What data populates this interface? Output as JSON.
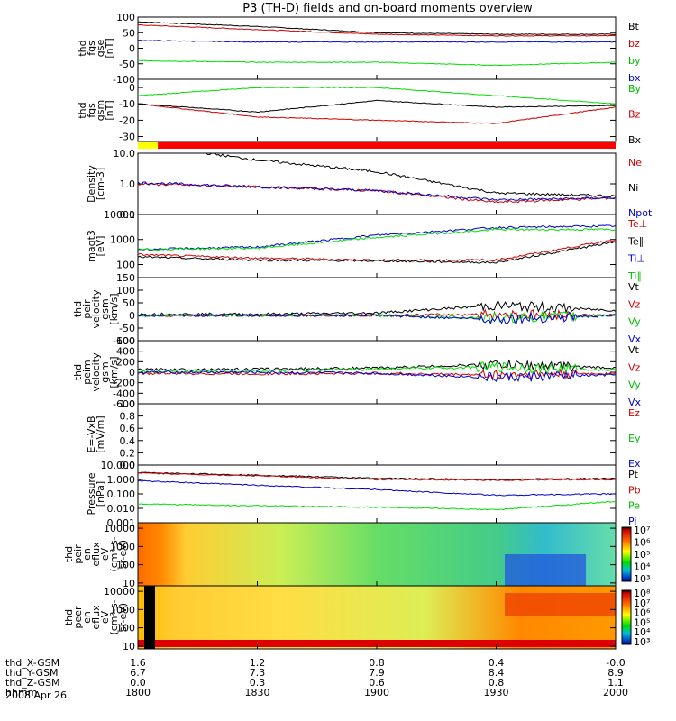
{
  "title": "P3 (TH-D) fields and on-board moments overview",
  "date": "2008 Apr 26",
  "colors": {
    "black": "#000000",
    "red": "#cc0000",
    "green": "#00dd00",
    "blue": "#0000cc"
  },
  "chart_data": [
    {
      "type": "line",
      "panel": "fgs_gse",
      "ylabel": [
        "thd",
        "fgs",
        "gse",
        "[nT]"
      ],
      "yticks": [
        "100",
        "50",
        "0",
        "-50",
        "-100"
      ],
      "ylim": [
        -100,
        100
      ],
      "scale": "linear",
      "legend": [
        {
          "label": "Bt",
          "color": "#000000"
        },
        {
          "label": "bz",
          "color": "#cc0000"
        },
        {
          "label": "by",
          "color": "#00bb00"
        },
        {
          "label": "bx",
          "color": "#0000cc"
        }
      ],
      "series": [
        {
          "name": "Bt",
          "color": "#000000",
          "x": [
            1800,
            1830,
            1900,
            1930,
            2000
          ],
          "values": [
            85,
            70,
            50,
            45,
            45
          ]
        },
        {
          "name": "bz",
          "color": "#cc0000",
          "x": [
            1800,
            1830,
            1900,
            1930,
            2000
          ],
          "values": [
            75,
            60,
            45,
            40,
            40
          ]
        },
        {
          "name": "by",
          "color": "#00dd00",
          "x": [
            1800,
            1830,
            1900,
            1930,
            2000
          ],
          "values": [
            -40,
            -45,
            -45,
            -55,
            -45
          ]
        },
        {
          "name": "bx",
          "color": "#0000cc",
          "x": [
            1800,
            1830,
            1900,
            1930,
            2000
          ],
          "values": [
            25,
            20,
            20,
            20,
            20
          ]
        }
      ]
    },
    {
      "type": "line",
      "panel": "fgs_gsm",
      "ylabel": [
        "thd",
        "fgs",
        "gsm",
        "[nT]"
      ],
      "yticks": [
        "0",
        "-10",
        "-20",
        "-30"
      ],
      "ylim": [
        -33,
        5
      ],
      "scale": "linear",
      "legend": [
        {
          "label": "By",
          "color": "#00bb00"
        },
        {
          "label": "Bz",
          "color": "#cc0000"
        },
        {
          "label": "Bx",
          "color": "#000000"
        }
      ],
      "series": [
        {
          "name": "By",
          "color": "#00dd00",
          "x": [
            1800,
            1830,
            1900,
            1930,
            2000
          ],
          "values": [
            -5,
            0,
            0,
            -5,
            -10
          ]
        },
        {
          "name": "Bz",
          "color": "#cc0000",
          "x": [
            1800,
            1830,
            1900,
            1930,
            2000
          ],
          "values": [
            -10,
            -18,
            -20,
            -22,
            -12
          ]
        },
        {
          "name": "Bx",
          "color": "#000000",
          "x": [
            1800,
            1830,
            1900,
            1930,
            2000
          ],
          "values": [
            -10,
            -15,
            -8,
            -12,
            -11
          ]
        }
      ]
    },
    {
      "type": "line",
      "panel": "density",
      "ylabel": [
        "Density",
        "[cm-3]"
      ],
      "yticks": [
        "10.0",
        "1.0",
        "0.1"
      ],
      "ylim": [
        0.1,
        10
      ],
      "scale": "log",
      "legend": [
        {
          "label": "Ne",
          "color": "#cc0000"
        },
        {
          "label": "Ni",
          "color": "#000000"
        },
        {
          "label": "Npot",
          "color": "#0000cc"
        }
      ],
      "series": [
        {
          "name": "Ne",
          "color": "#cc0000",
          "x": [
            1800,
            1830,
            1900,
            1930,
            2000
          ],
          "values": [
            1.0,
            0.8,
            0.6,
            0.25,
            0.35
          ]
        },
        {
          "name": "Ni",
          "color": "#000000",
          "x": [
            1800,
            1830,
            1900,
            1930,
            2000
          ],
          "values": [
            20,
            6,
            2.5,
            0.5,
            0.4
          ]
        },
        {
          "name": "Npot",
          "color": "#0000cc",
          "x": [
            1800,
            1830,
            1900,
            1930,
            2000
          ],
          "values": [
            1.1,
            0.8,
            0.6,
            0.3,
            0.35
          ]
        }
      ]
    },
    {
      "type": "line",
      "panel": "temperature",
      "ylabel": [
        "magt3",
        "[eV]"
      ],
      "yticks": [
        "10000",
        "1000",
        "100"
      ],
      "ylim": [
        30,
        10000
      ],
      "scale": "log",
      "legend": [
        {
          "label": "Te⊥",
          "color": "#cc0000"
        },
        {
          "label": "Te∥",
          "color": "#000000"
        },
        {
          "label": "Ti⊥",
          "color": "#0000cc"
        },
        {
          "label": "Ti∥",
          "color": "#00bb00"
        }
      ],
      "series": [
        {
          "name": "Te⊥",
          "color": "#cc0000",
          "x": [
            1800,
            1830,
            1900,
            1930,
            2000
          ],
          "values": [
            250,
            180,
            150,
            150,
            1000
          ]
        },
        {
          "name": "Te∥",
          "color": "#000000",
          "x": [
            1800,
            1830,
            1900,
            1930,
            2000
          ],
          "values": [
            200,
            150,
            140,
            120,
            800
          ]
        },
        {
          "name": "Ti⊥",
          "color": "#0000cc",
          "x": [
            1800,
            1830,
            1900,
            1930,
            2000
          ],
          "values": [
            400,
            500,
            1500,
            3000,
            3500
          ]
        },
        {
          "name": "Ti∥",
          "color": "#00dd00",
          "x": [
            1800,
            1830,
            1900,
            1930,
            2000
          ],
          "values": [
            400,
            450,
            1200,
            2500,
            2500
          ]
        }
      ]
    },
    {
      "type": "line",
      "panel": "peir_velocity",
      "ylabel": [
        "thd",
        "peir",
        "velocity",
        "gsm",
        "[km/s]"
      ],
      "yticks": [
        "150",
        "100",
        "50",
        "0",
        "-50",
        "-100"
      ],
      "ylim": [
        -100,
        150
      ],
      "scale": "linear",
      "legend": [
        {
          "label": "Vt",
          "color": "#000000"
        },
        {
          "label": "Vz",
          "color": "#cc0000"
        },
        {
          "label": "Vy",
          "color": "#00bb00"
        },
        {
          "label": "Vx",
          "color": "#0000cc"
        }
      ],
      "series": [
        {
          "name": "Vt",
          "color": "#000000",
          "x": [
            1800,
            1830,
            1900,
            1930,
            2000
          ],
          "values": [
            5,
            5,
            10,
            40,
            20
          ]
        },
        {
          "name": "Vz",
          "color": "#cc0000",
          "x": [
            1800,
            1830,
            1900,
            1930,
            2000
          ],
          "values": [
            0,
            0,
            0,
            5,
            0
          ]
        },
        {
          "name": "Vy",
          "color": "#00dd00",
          "x": [
            1800,
            1830,
            1900,
            1930,
            2000
          ],
          "values": [
            0,
            0,
            0,
            -10,
            0
          ]
        },
        {
          "name": "Vx",
          "color": "#0000cc",
          "x": [
            1800,
            1830,
            1900,
            1930,
            2000
          ],
          "values": [
            0,
            0,
            0,
            -15,
            0
          ]
        }
      ]
    },
    {
      "type": "line",
      "panel": "peim_velocity",
      "ylabel": [
        "thd",
        "peim",
        "velocity",
        "gsm",
        "[km/s]"
      ],
      "yticks": [
        "600",
        "400",
        "200",
        "0",
        "-200",
        "-400",
        "-600"
      ],
      "ylim": [
        -600,
        600
      ],
      "scale": "linear",
      "legend": [
        {
          "label": "Vt",
          "color": "#000000"
        },
        {
          "label": "Vz",
          "color": "#cc0000"
        },
        {
          "label": "Vy",
          "color": "#00bb00"
        },
        {
          "label": "Vx",
          "color": "#0000cc"
        }
      ],
      "series": [
        {
          "name": "Vt",
          "color": "#000000",
          "x": [
            1800,
            1830,
            1900,
            1930,
            2000
          ],
          "values": [
            50,
            60,
            80,
            150,
            80
          ]
        },
        {
          "name": "Vz",
          "color": "#cc0000",
          "x": [
            1800,
            1830,
            1900,
            1930,
            2000
          ],
          "values": [
            -20,
            -30,
            -20,
            -50,
            -20
          ]
        },
        {
          "name": "Vy",
          "color": "#00dd00",
          "x": [
            1800,
            1830,
            1900,
            1930,
            2000
          ],
          "values": [
            10,
            20,
            60,
            100,
            40
          ]
        },
        {
          "name": "Vx",
          "color": "#0000cc",
          "x": [
            1800,
            1830,
            1900,
            1930,
            2000
          ],
          "values": [
            0,
            0,
            -20,
            -100,
            -50
          ]
        }
      ]
    },
    {
      "type": "line",
      "panel": "e_vxb",
      "ylabel": [
        "E=-VxB",
        "[mV/m]"
      ],
      "yticks": [
        "1.0",
        "0.8",
        "0.6",
        "0.4",
        "0.2",
        "0.0"
      ],
      "ylim": [
        0,
        1
      ],
      "scale": "linear",
      "legend": [
        {
          "label": "Ez",
          "color": "#cc0000"
        },
        {
          "label": "Ey",
          "color": "#00bb00"
        },
        {
          "label": "Ex",
          "color": "#0000cc"
        }
      ],
      "series": []
    },
    {
      "type": "line",
      "panel": "pressure",
      "ylabel": [
        "Pressure",
        "[nPa]"
      ],
      "yticks": [
        "10.000",
        "1.000",
        "0.100",
        "0.010",
        "0.001"
      ],
      "ylim": [
        0.001,
        10
      ],
      "scale": "log",
      "legend": [
        {
          "label": "Pt",
          "color": "#000000"
        },
        {
          "label": "Pb",
          "color": "#cc0000"
        },
        {
          "label": "Pe",
          "color": "#00bb00"
        },
        {
          "label": "Pi",
          "color": "#0000cc"
        }
      ],
      "series": [
        {
          "name": "Pt",
          "color": "#000000",
          "x": [
            1800,
            1830,
            1900,
            1930,
            2000
          ],
          "values": [
            3,
            2,
            1.2,
            1,
            1.2
          ]
        },
        {
          "name": "Pb",
          "color": "#cc0000",
          "x": [
            1800,
            1830,
            1900,
            1930,
            2000
          ],
          "values": [
            2.8,
            1.8,
            1.0,
            0.9,
            1.0
          ]
        },
        {
          "name": "Pe",
          "color": "#00dd00",
          "x": [
            1800,
            1830,
            1900,
            1930,
            2000
          ],
          "values": [
            0.02,
            0.015,
            0.012,
            0.008,
            0.03
          ]
        },
        {
          "name": "Pi",
          "color": "#0000cc",
          "x": [
            1800,
            1830,
            1900,
            1930,
            2000
          ],
          "values": [
            0.8,
            0.4,
            0.2,
            0.08,
            0.1
          ]
        }
      ]
    },
    {
      "type": "heatmap",
      "panel": "peir_en_eflux",
      "ylabel": [
        "thd",
        "peir",
        "en",
        "eflux",
        "eV",
        "(cm²-s-",
        "sr-eV)"
      ],
      "yticks": [
        "10000",
        "1000",
        "100",
        "10"
      ],
      "ylim": [
        7,
        20000
      ],
      "scale": "log",
      "colorbar_ticks": [
        "10⁷",
        "10⁶",
        "10⁵",
        "10⁴",
        "10³"
      ]
    },
    {
      "type": "heatmap",
      "panel": "peer_en_eflux",
      "ylabel": [
        "thd",
        "peer",
        "en",
        "eflux",
        "eV",
        "(cm²-s-",
        "sr-eV)"
      ],
      "yticks": [
        "10000",
        "1000",
        "100",
        "10"
      ],
      "ylim": [
        7,
        20000
      ],
      "scale": "log",
      "colorbar_ticks": [
        "10⁸",
        "10⁷",
        "10⁶",
        "10⁵",
        "10⁴",
        "10³"
      ]
    }
  ],
  "x_axis": {
    "rows": [
      {
        "label": "thd_X-GSM",
        "values": [
          "1.6",
          "1.2",
          "0.8",
          "0.4",
          "-0.0"
        ]
      },
      {
        "label": "thd_Y-GSM",
        "values": [
          "6.7",
          "7.3",
          "7.9",
          "8.4",
          "8.9"
        ]
      },
      {
        "label": "thd_Z-GSM",
        "values": [
          "0.0",
          "0.3",
          "0.6",
          "0.8",
          "1.1"
        ]
      },
      {
        "label": "hhmm",
        "values": [
          "1800",
          "1830",
          "1900",
          "1930",
          "2000"
        ]
      }
    ]
  },
  "bar": [
    {
      "color": "#ffff00",
      "x": [
        1800,
        1805
      ]
    },
    {
      "color": "#ff0000",
      "x": [
        1805,
        2000
      ]
    }
  ]
}
